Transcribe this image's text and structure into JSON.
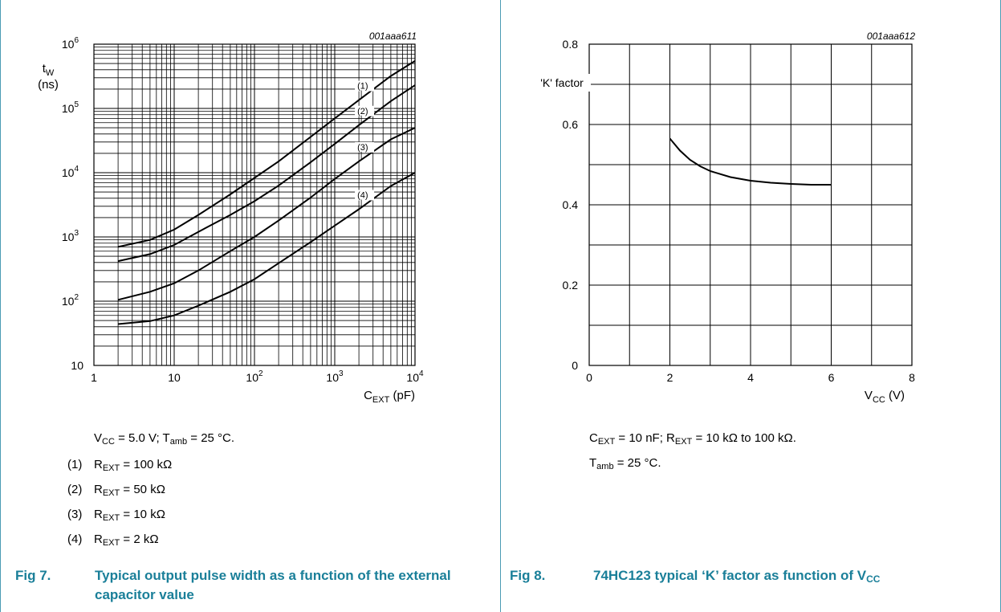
{
  "colors": {
    "accent": "#1a7f99",
    "rule": "#4a9bb4"
  },
  "fig7": {
    "code": "001aaa611",
    "fig_no": "Fig 7.",
    "title": "Typical output pulse width as a function of the external capacitor value",
    "conditions": {
      "vcc": "V",
      "vcc_sub": "CC",
      "vcc_val": " = 5.0 V; T",
      "tamb_sub": "amb",
      "tamb_val": " = 25 °C."
    },
    "legend": [
      {
        "num": "(1)",
        "r": "R",
        "sub": "EXT",
        "val": " = 100 kΩ"
      },
      {
        "num": "(2)",
        "r": "R",
        "sub": "EXT",
        "val": " = 50 kΩ"
      },
      {
        "num": "(3)",
        "r": "R",
        "sub": "EXT",
        "val": " = 10 kΩ"
      },
      {
        "num": "(4)",
        "r": "R",
        "sub": "EXT",
        "val": " = 2 kΩ"
      }
    ]
  },
  "fig8": {
    "code": "001aaa612",
    "fig_no": "Fig 8.",
    "title": "74HC123 typical ‘K’ factor as function of V",
    "title_sub": "CC",
    "cond1": {
      "c": "C",
      "c_sub": "EXT",
      "c_val": " = 10 nF; R",
      "r_sub": "EXT",
      "r_val": " = 10 kΩ to 100 kΩ."
    },
    "cond2": {
      "t": "T",
      "t_sub": "amb",
      "t_val": " = 25 °C."
    }
  },
  "chart_data": [
    {
      "type": "line",
      "xscale": "log",
      "yscale": "log",
      "xlim": [
        1,
        10000
      ],
      "ylim": [
        10,
        1000000
      ],
      "xlabel": "C",
      "xlabel_sub": "EXT",
      "xlabel_unit": " (pF)",
      "ylabel_main": "t",
      "ylabel_sub": "W",
      "ylabel_unit": "(ns)",
      "xticks": [
        {
          "value": 1,
          "base": "1",
          "exp": ""
        },
        {
          "value": 10,
          "base": "10",
          "exp": ""
        },
        {
          "value": 100,
          "base": "10",
          "exp": "2"
        },
        {
          "value": 1000,
          "base": "10",
          "exp": "3"
        },
        {
          "value": 10000,
          "base": "10",
          "exp": "4"
        }
      ],
      "yticks": [
        {
          "value": 10,
          "base": "10",
          "exp": ""
        },
        {
          "value": 100,
          "base": "10",
          "exp": "2"
        },
        {
          "value": 1000,
          "base": "10",
          "exp": "3"
        },
        {
          "value": 10000,
          "base": "10",
          "exp": "4"
        },
        {
          "value": 100000,
          "base": "10",
          "exp": "5"
        },
        {
          "value": 1000000,
          "base": "10",
          "exp": "6"
        }
      ],
      "grid": true,
      "series": [
        {
          "name": "(1)",
          "x": [
            2,
            5,
            10,
            20,
            50,
            100,
            200,
            500,
            1000,
            2000,
            5000,
            10000
          ],
          "y": [
            700,
            900,
            1300,
            2200,
            4600,
            8300,
            15000,
            36000,
            70000,
            135000,
            320000,
            550000
          ]
        },
        {
          "name": "(2)",
          "x": [
            2,
            5,
            10,
            20,
            50,
            100,
            200,
            500,
            1000,
            2000,
            5000,
            10000
          ],
          "y": [
            420,
            540,
            750,
            1200,
            2200,
            3600,
            6300,
            14500,
            28000,
            55000,
            130000,
            230000
          ]
        },
        {
          "name": "(3)",
          "x": [
            2,
            5,
            10,
            20,
            50,
            100,
            200,
            500,
            1000,
            2000,
            5000,
            10000
          ],
          "y": [
            105,
            140,
            190,
            300,
            600,
            1000,
            1800,
            4100,
            8000,
            15000,
            33000,
            50000
          ]
        },
        {
          "name": "(4)",
          "x": [
            2,
            5,
            10,
            20,
            50,
            100,
            200,
            500,
            1000,
            2000,
            5000,
            10000
          ],
          "y": [
            44,
            49,
            60,
            85,
            140,
            220,
            390,
            830,
            1500,
            2700,
            6200,
            10000
          ]
        }
      ]
    },
    {
      "type": "line",
      "xlim": [
        0,
        8
      ],
      "ylim": [
        0,
        0.8
      ],
      "xlabel": "V",
      "xlabel_sub": "CC",
      "xlabel_unit": " (V)",
      "ylabel": "'K' factor",
      "xticks": [
        "0",
        "2",
        "4",
        "6",
        "8"
      ],
      "yticks": [
        "0",
        "0.2",
        "0.4",
        "0.6",
        "0.8"
      ],
      "grid": true,
      "series": [
        {
          "x": [
            2.0,
            2.25,
            2.5,
            2.75,
            3.0,
            3.5,
            4.0,
            4.5,
            5.0,
            5.5,
            6.0
          ],
          "y": [
            0.565,
            0.535,
            0.512,
            0.496,
            0.484,
            0.469,
            0.46,
            0.455,
            0.452,
            0.45,
            0.45
          ]
        }
      ]
    }
  ]
}
